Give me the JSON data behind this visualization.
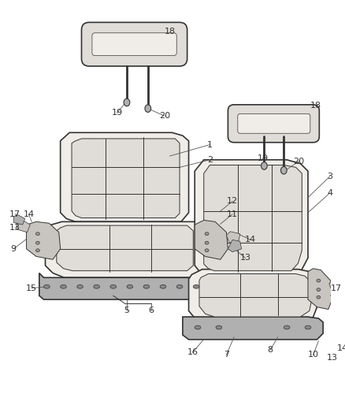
{
  "bg_color": "#ffffff",
  "line_color": "#333333",
  "label_color": "#333333",
  "fill_light": "#f0ede8",
  "fill_mid": "#e0ddd8",
  "fill_dark": "#c8c5c0",
  "fill_metal": "#b0b0b0",
  "lw_main": 1.2,
  "lw_thin": 0.7,
  "lw_detail": 0.5,
  "label_fs": 8.0,
  "leader_lw": 0.6,
  "leader_color": "#555555"
}
